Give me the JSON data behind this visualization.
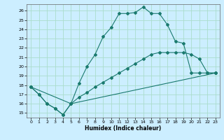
{
  "xlabel": "Humidex (Indice chaleur)",
  "bg_color": "#cceeff",
  "grid_color": "#aaddcc",
  "line_color": "#1a7a6e",
  "xlim": [
    -0.5,
    23.5
  ],
  "ylim": [
    14.5,
    26.7
  ],
  "xticks": [
    0,
    1,
    2,
    3,
    4,
    5,
    6,
    7,
    8,
    9,
    10,
    11,
    12,
    13,
    14,
    15,
    16,
    17,
    18,
    19,
    20,
    21,
    22,
    23
  ],
  "yticks": [
    15,
    16,
    17,
    18,
    19,
    20,
    21,
    22,
    23,
    24,
    25,
    26
  ],
  "line1_x": [
    0,
    1,
    2,
    3,
    4,
    5,
    6,
    7,
    8,
    9,
    10,
    11,
    12,
    13,
    14,
    15,
    16,
    17,
    18,
    19,
    20,
    21,
    22,
    23
  ],
  "line1_y": [
    17.8,
    17.0,
    16.0,
    15.5,
    14.8,
    16.0,
    18.2,
    20.0,
    21.3,
    23.2,
    24.2,
    25.7,
    25.7,
    25.8,
    26.4,
    25.7,
    25.7,
    24.5,
    22.7,
    22.5,
    19.3,
    19.3,
    19.3,
    19.3
  ],
  "line2_x": [
    0,
    1,
    2,
    3,
    4,
    5,
    6,
    7,
    8,
    9,
    10,
    11,
    12,
    13,
    14,
    15,
    16,
    17,
    18,
    19,
    20,
    21,
    22,
    23
  ],
  "line2_y": [
    17.8,
    17.0,
    16.0,
    15.5,
    14.8,
    16.0,
    16.7,
    17.2,
    17.8,
    18.3,
    18.8,
    19.3,
    19.8,
    20.3,
    20.8,
    21.3,
    21.5,
    21.5,
    21.5,
    21.5,
    21.3,
    20.8,
    19.3,
    19.3
  ],
  "line3_x": [
    0,
    5,
    23
  ],
  "line3_y": [
    17.8,
    16.0,
    19.3
  ]
}
